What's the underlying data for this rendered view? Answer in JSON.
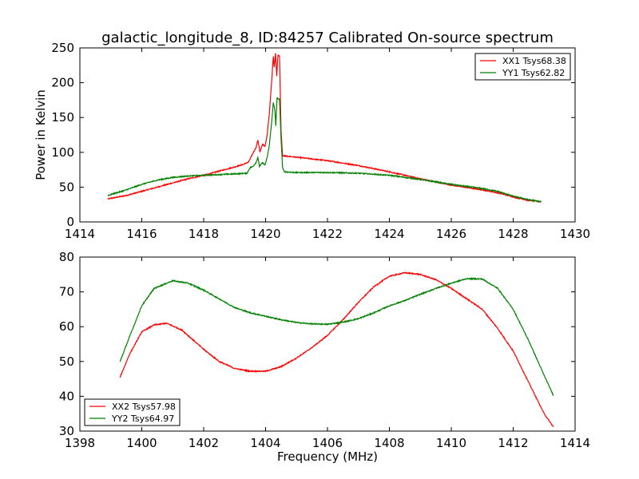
{
  "title": "galactic_longitude_8, ID:84257 Calibrated On-source spectrum",
  "chart_data": [
    {
      "type": "line",
      "ylabel": "Power in Kelvin",
      "xlabel": "",
      "xlim": [
        1414,
        1430
      ],
      "ylim": [
        0,
        250
      ],
      "xticks": [
        "1414",
        "1416",
        "1418",
        "1420",
        "1422",
        "1424",
        "1426",
        "1428",
        "1430"
      ],
      "yticks": [
        "0",
        "50",
        "100",
        "150",
        "200",
        "250"
      ],
      "legend_position": "top-right",
      "series": [
        {
          "name": "XX1 Tsys68.38",
          "color": "#ff0000",
          "points": [
            [
              1414.9,
              33
            ],
            [
              1415.5,
              38
            ],
            [
              1416,
              44
            ],
            [
              1416.5,
              50
            ],
            [
              1417,
              56
            ],
            [
              1417.5,
              62
            ],
            [
              1418,
              67
            ],
            [
              1418.5,
              73
            ],
            [
              1419,
              79
            ],
            [
              1419.3,
              83
            ],
            [
              1419.45,
              86
            ],
            [
              1419.55,
              95
            ],
            [
              1419.7,
              108
            ],
            [
              1419.75,
              118
            ],
            [
              1419.82,
              100
            ],
            [
              1419.9,
              112
            ],
            [
              1419.98,
              108
            ],
            [
              1420.05,
              125
            ],
            [
              1420.12,
              155
            ],
            [
              1420.2,
              205
            ],
            [
              1420.25,
              238
            ],
            [
              1420.28,
              222
            ],
            [
              1420.32,
              242
            ],
            [
              1420.36,
              210
            ],
            [
              1420.4,
              240
            ],
            [
              1420.45,
              238
            ],
            [
              1420.5,
              130
            ],
            [
              1420.55,
              95
            ],
            [
              1421,
              93
            ],
            [
              1422,
              88
            ],
            [
              1423,
              81
            ],
            [
              1424,
              72
            ],
            [
              1425,
              62
            ],
            [
              1426,
              53
            ],
            [
              1427,
              46
            ],
            [
              1427.5,
              42
            ],
            [
              1428,
              36
            ],
            [
              1428.5,
              31
            ],
            [
              1428.9,
              29
            ]
          ]
        },
        {
          "name": "YY1 Tsys62.82",
          "color": "#008000",
          "points": [
            [
              1414.9,
              38
            ],
            [
              1415.5,
              46
            ],
            [
              1416,
              54
            ],
            [
              1416.5,
              60
            ],
            [
              1417,
              64
            ],
            [
              1417.5,
              66
            ],
            [
              1418,
              67
            ],
            [
              1418.5,
              68
            ],
            [
              1419,
              69
            ],
            [
              1419.4,
              70
            ],
            [
              1419.5,
              78
            ],
            [
              1419.6,
              80
            ],
            [
              1419.7,
              86
            ],
            [
              1419.75,
              93
            ],
            [
              1419.8,
              80
            ],
            [
              1419.9,
              85
            ],
            [
              1419.98,
              82
            ],
            [
              1420.05,
              92
            ],
            [
              1420.12,
              110
            ],
            [
              1420.2,
              145
            ],
            [
              1420.25,
              172
            ],
            [
              1420.3,
              160
            ],
            [
              1420.33,
              138
            ],
            [
              1420.37,
              178
            ],
            [
              1420.45,
              176
            ],
            [
              1420.5,
              120
            ],
            [
              1420.55,
              78
            ],
            [
              1420.6,
              72
            ],
            [
              1421,
              71
            ],
            [
              1422,
              71
            ],
            [
              1423,
              70
            ],
            [
              1424,
              67
            ],
            [
              1425,
              61
            ],
            [
              1426,
              54
            ],
            [
              1427,
              48
            ],
            [
              1427.5,
              44
            ],
            [
              1428,
              37
            ],
            [
              1428.5,
              32
            ],
            [
              1428.9,
              29
            ]
          ]
        }
      ]
    },
    {
      "type": "line",
      "ylabel": "",
      "xlabel": "Frequency (MHz)",
      "xlim": [
        1398,
        1414
      ],
      "ylim": [
        30,
        80
      ],
      "xticks": [
        "1398",
        "1400",
        "1402",
        "1404",
        "1406",
        "1408",
        "1410",
        "1412",
        "1414"
      ],
      "yticks": [
        "30",
        "40",
        "50",
        "60",
        "70",
        "80"
      ],
      "legend_position": "bottom-left",
      "series": [
        {
          "name": "XX2 Tsys57.98",
          "color": "#ff0000",
          "points": [
            [
              1399.3,
              45.5
            ],
            [
              1399.6,
              52
            ],
            [
              1400,
              58.5
            ],
            [
              1400.4,
              60.5
            ],
            [
              1400.8,
              61
            ],
            [
              1401.3,
              59
            ],
            [
              1402,
              53.5
            ],
            [
              1402.5,
              50
            ],
            [
              1403,
              48
            ],
            [
              1403.5,
              47.2
            ],
            [
              1404,
              47.2
            ],
            [
              1404.5,
              48.5
            ],
            [
              1405,
              51
            ],
            [
              1405.5,
              54
            ],
            [
              1406,
              57.5
            ],
            [
              1406.5,
              62
            ],
            [
              1407,
              67
            ],
            [
              1407.5,
              71.5
            ],
            [
              1408,
              74.5
            ],
            [
              1408.5,
              75.5
            ],
            [
              1409,
              75
            ],
            [
              1409.5,
              73.5
            ],
            [
              1410,
              71
            ],
            [
              1410.5,
              68
            ],
            [
              1411,
              65
            ],
            [
              1411.5,
              59.5
            ],
            [
              1412,
              53
            ],
            [
              1412.5,
              44
            ],
            [
              1413,
              35
            ],
            [
              1413.3,
              31.2
            ]
          ]
        },
        {
          "name": "YY2 Tsys64.97",
          "color": "#008000",
          "points": [
            [
              1399.3,
              50
            ],
            [
              1399.6,
              57
            ],
            [
              1400,
              66
            ],
            [
              1400.4,
              71
            ],
            [
              1401,
              73.2
            ],
            [
              1401.5,
              72.5
            ],
            [
              1402,
              70.5
            ],
            [
              1402.5,
              68
            ],
            [
              1403,
              65.5
            ],
            [
              1403.5,
              64
            ],
            [
              1404,
              63
            ],
            [
              1404.5,
              62
            ],
            [
              1405,
              61.2
            ],
            [
              1405.5,
              60.8
            ],
            [
              1406,
              60.7
            ],
            [
              1406.5,
              61.3
            ],
            [
              1407,
              62.3
            ],
            [
              1407.5,
              64
            ],
            [
              1408,
              66
            ],
            [
              1408.5,
              67.5
            ],
            [
              1409,
              69.3
            ],
            [
              1409.5,
              71
            ],
            [
              1410,
              72.5
            ],
            [
              1410.5,
              73.8
            ],
            [
              1411,
              73.7
            ],
            [
              1411.5,
              71
            ],
            [
              1412,
              65
            ],
            [
              1412.5,
              56
            ],
            [
              1413,
              46
            ],
            [
              1413.3,
              40.2
            ]
          ]
        }
      ]
    }
  ]
}
